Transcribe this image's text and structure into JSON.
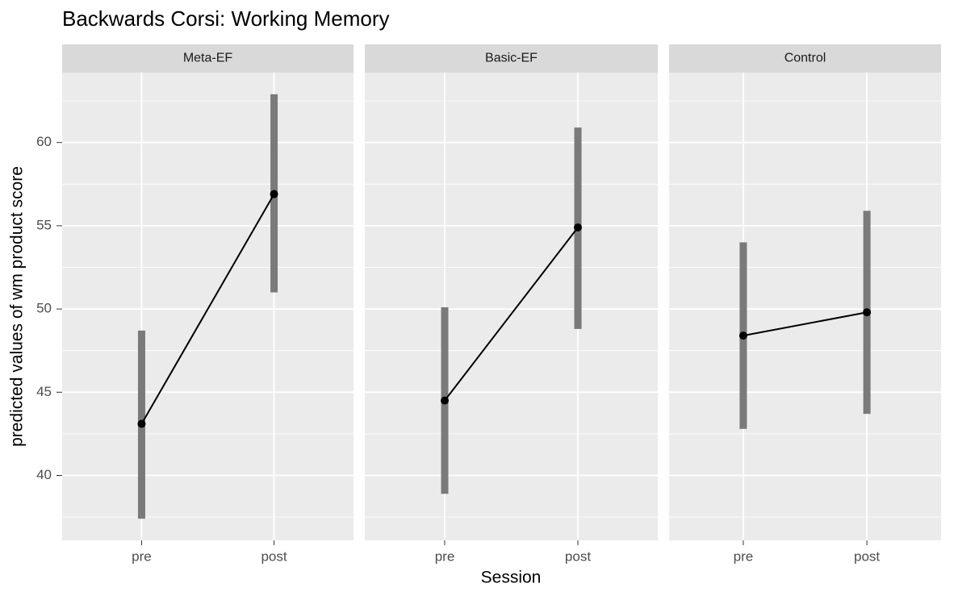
{
  "chart_data": {
    "type": "line",
    "title": "Backwards Corsi: Working Memory",
    "x_label": "Session",
    "y_label": "predicted values of wm product score",
    "categories": [
      "pre",
      "post"
    ],
    "ylim": [
      36.1,
      64.2
    ],
    "yticks": [
      40,
      45,
      50,
      55,
      60
    ],
    "grid": true,
    "color": "#000000",
    "range_color": "#7a7a7a",
    "panels": [
      {
        "name": "Meta-EF",
        "values": [
          43.1,
          56.9
        ],
        "lower": [
          37.4,
          51.0
        ],
        "upper": [
          48.7,
          62.9
        ]
      },
      {
        "name": "Basic-EF",
        "values": [
          44.5,
          54.9
        ],
        "lower": [
          38.9,
          48.8
        ],
        "upper": [
          50.1,
          60.9
        ]
      },
      {
        "name": "Control",
        "values": [
          48.4,
          49.8
        ],
        "lower": [
          42.8,
          43.7
        ],
        "upper": [
          54.0,
          55.9
        ]
      }
    ]
  }
}
